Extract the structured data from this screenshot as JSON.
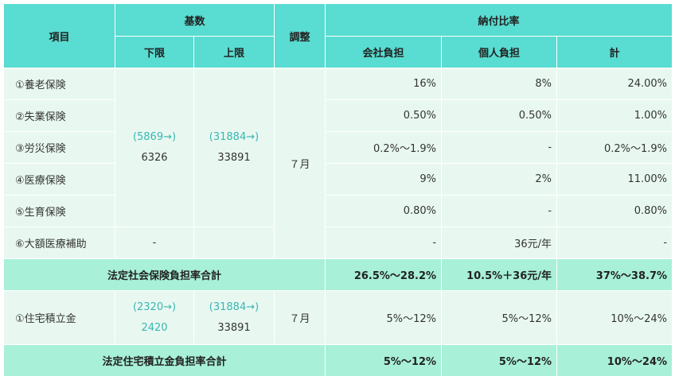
{
  "header": {
    "item": "項目",
    "base": "基数",
    "adjust": "調整",
    "rate": "納付比率",
    "lower": "下限",
    "upper": "上限",
    "company": "会社負担",
    "personal": "個人負担",
    "total": "計"
  },
  "rows": [
    {
      "item": "①養老保険",
      "company": "16%",
      "personal": "8%",
      "total": "24.00%"
    },
    {
      "item": "②失業保険",
      "company": "0.50%",
      "personal": "0.50%",
      "total": "1.00%"
    },
    {
      "item": "③労災保険",
      "company": "0.2%～1.9%",
      "personal": "-",
      "total": "0.2%～1.9%"
    },
    {
      "item": "④医療保険",
      "company": "9%",
      "personal": "2%",
      "total": "11.00%"
    },
    {
      "item": "⑤生育保険",
      "company": "0.80%",
      "personal": "-",
      "total": "0.80%"
    },
    {
      "item": "⑥大額医療補助",
      "lower": "-",
      "upper": "",
      "company": "-",
      "personal": "36元/年",
      "total": "-"
    }
  ],
  "social_base": {
    "lower_prev": "(5869→)",
    "lower": "6326",
    "upper_prev": "(31884→)",
    "upper": "33891",
    "adjust": "７月"
  },
  "social_total": {
    "label": "法定社会保険負担率合計",
    "company": "26.5%～28.2%",
    "personal": "10.5%＋36元/年",
    "total": "37%～38.7%"
  },
  "housing": {
    "item": "①住宅積立金",
    "lower_prev": "(2320→)",
    "lower": "2420",
    "upper_prev": "(31884→)",
    "upper": "33891",
    "adjust": "７月",
    "company": "5%～12%",
    "personal": "5%～12%",
    "total": "10%～24%"
  },
  "housing_total": {
    "label": "法定住宅積立金負担率合計",
    "company": "5%～12%",
    "personal": "5%～12%",
    "total": "10%～24%"
  },
  "colors": {
    "header_bg": "#59dcd1",
    "cell_bg": "#e8f8f0",
    "total_bg": "#a8f0d8",
    "prev_value_text": "#3ab6b2"
  }
}
